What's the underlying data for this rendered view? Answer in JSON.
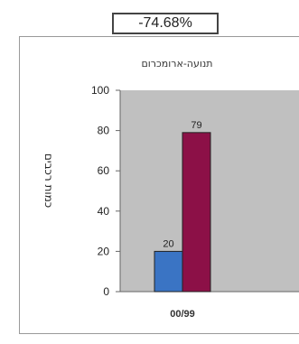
{
  "header": {
    "percent_label": "-74.68%"
  },
  "chart_data": {
    "type": "bar",
    "title": "תנועה-ארומכרום",
    "ylabel": "כמות רכבים",
    "xlabel": "",
    "categories": [
      "00/99"
    ],
    "ylim": [
      0,
      100
    ],
    "yticks": [
      0,
      20,
      40,
      60,
      80,
      100
    ],
    "grid": false,
    "legend": "none",
    "series": [
      {
        "values": [
          20
        ],
        "color": "#3a74c4"
      },
      {
        "values": [
          79
        ],
        "color": "#8c1047"
      }
    ],
    "data_labels": [
      "20",
      "79"
    ],
    "plot_background": "#c0c0c0"
  }
}
